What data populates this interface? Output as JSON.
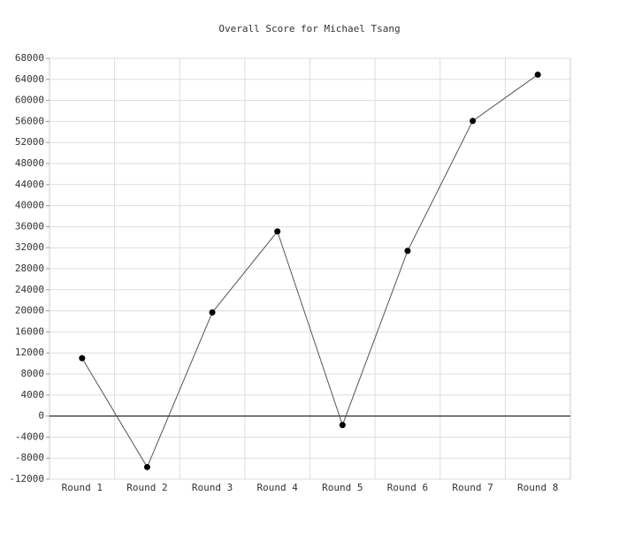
{
  "chart_data": {
    "type": "line",
    "title": "Overall Score for Michael Tsang",
    "categories": [
      "Round 1",
      "Round 2",
      "Round 3",
      "Round 4",
      "Round 5",
      "Round 6",
      "Round 7",
      "Round 8"
    ],
    "series": [
      {
        "name": "Overall Score",
        "color": "#000000",
        "values": [
          11000,
          -9700,
          19700,
          35100,
          -1700,
          31400,
          56100,
          64900
        ]
      }
    ],
    "ylim": [
      -12000,
      68000
    ],
    "yticks": [
      -12000,
      -8000,
      -4000,
      0,
      4000,
      8000,
      12000,
      16000,
      20000,
      24000,
      28000,
      32000,
      36000,
      40000,
      44000,
      48000,
      52000,
      56000,
      60000,
      64000,
      68000
    ],
    "grid": true
  }
}
